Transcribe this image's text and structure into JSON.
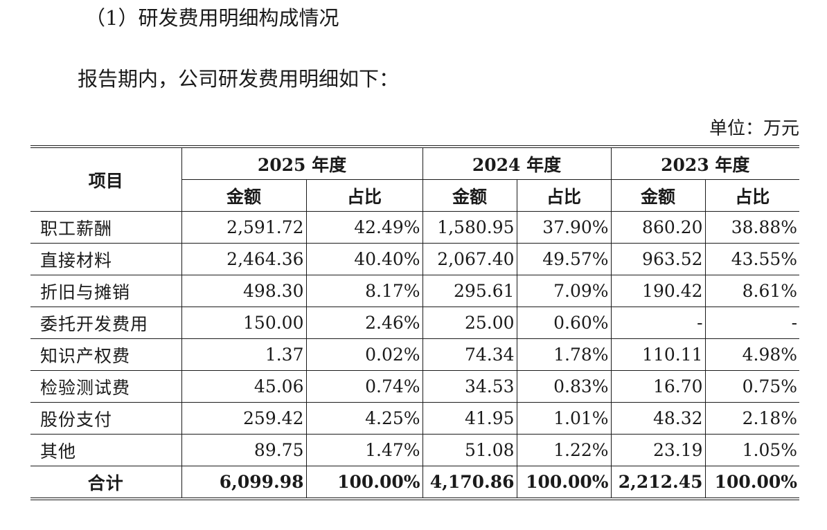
{
  "section_heading": "（1）研发费用明细构成情况",
  "intro_text": "报告期内，公司研发费用明细如下：",
  "unit_label": "单位：万元",
  "table": {
    "item_header": "项目",
    "years": [
      "2025 年度",
      "2024 年度",
      "2023 年度"
    ],
    "sub_headers": {
      "amount": "金额",
      "ratio": "占比"
    },
    "rows": [
      {
        "item": "职工薪酬",
        "cells": [
          "2,591.72",
          "42.49%",
          "1,580.95",
          "37.90%",
          "860.20",
          "38.88%"
        ]
      },
      {
        "item": "直接材料",
        "cells": [
          "2,464.36",
          "40.40%",
          "2,067.40",
          "49.57%",
          "963.52",
          "43.55%"
        ]
      },
      {
        "item": "折旧与摊销",
        "cells": [
          "498.30",
          "8.17%",
          "295.61",
          "7.09%",
          "190.42",
          "8.61%"
        ]
      },
      {
        "item": "委托开发费用",
        "cells": [
          "150.00",
          "2.46%",
          "25.00",
          "0.60%",
          "-",
          "-"
        ]
      },
      {
        "item": "知识产权费",
        "cells": [
          "1.37",
          "0.02%",
          "74.34",
          "1.78%",
          "110.11",
          "4.98%"
        ]
      },
      {
        "item": "检验测试费",
        "cells": [
          "45.06",
          "0.74%",
          "34.53",
          "0.83%",
          "16.70",
          "0.75%"
        ]
      },
      {
        "item": "股份支付",
        "cells": [
          "259.42",
          "4.25%",
          "41.95",
          "1.01%",
          "48.32",
          "2.18%"
        ]
      },
      {
        "item": "其他",
        "cells": [
          "89.75",
          "1.47%",
          "51.08",
          "1.22%",
          "23.19",
          "1.05%"
        ]
      }
    ],
    "total": {
      "item": "合计",
      "cells": [
        "6,099.98",
        "100.00%",
        "4,170.86",
        "100.00%",
        "2,212.45",
        "100.00%"
      ]
    }
  }
}
